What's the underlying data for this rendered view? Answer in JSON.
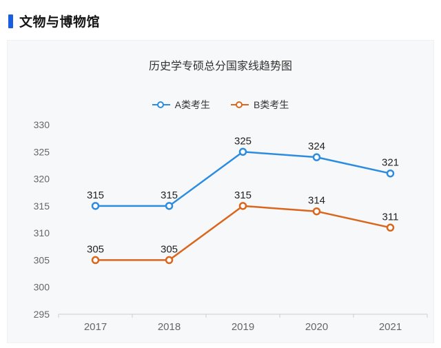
{
  "header": {
    "title": "文物与博物馆"
  },
  "colors": {
    "header_accent": "#1a5ee0",
    "axis_line": "#cccccc",
    "axis_text": "#666666",
    "point_label": "#222222",
    "card_background": "#f7f8f9"
  },
  "chart_data": {
    "type": "line",
    "title": "历史学专硕总分国家线趋势图",
    "categories": [
      "2017",
      "2018",
      "2019",
      "2020",
      "2021"
    ],
    "series": [
      {
        "name": "A类考生",
        "color": "#2b8ce0",
        "values": [
          315,
          315,
          325,
          324,
          321
        ]
      },
      {
        "name": "B类考生",
        "color": "#d9661c",
        "values": [
          305,
          305,
          315,
          314,
          311
        ]
      }
    ],
    "ylim": [
      295,
      330
    ],
    "ytick_step": 5,
    "legend_position": "top",
    "grid": false,
    "point_labels": true,
    "xlabel": "",
    "ylabel": ""
  }
}
